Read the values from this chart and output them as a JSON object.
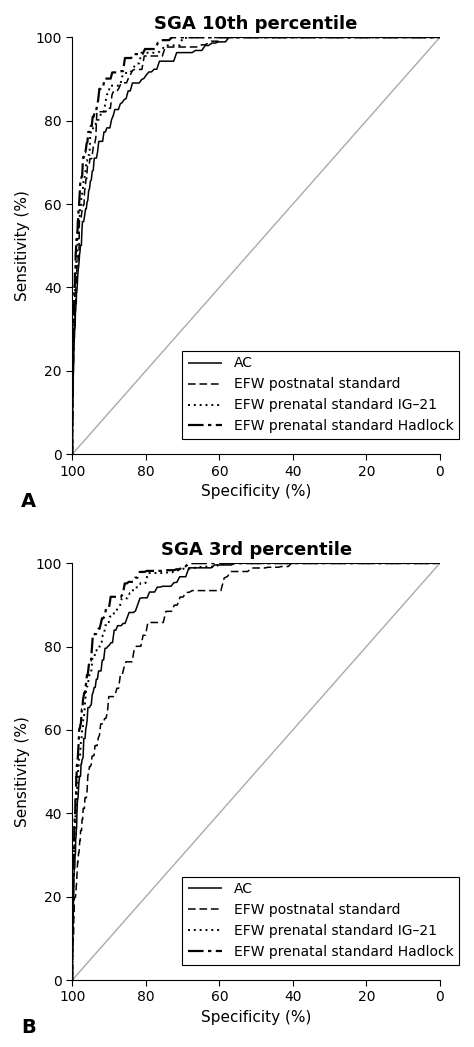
{
  "panel_A_title": "SGA 10th percentile",
  "panel_B_title": "SGA 3rd percentile",
  "xlabel": "Specificity (%)",
  "ylabel": "Sensitivity (%)",
  "panel_label_A": "A",
  "panel_label_B": "B",
  "xticks": [
    100,
    80,
    60,
    40,
    20,
    0
  ],
  "yticks": [
    0,
    20,
    40,
    60,
    80,
    100
  ],
  "diagonal_color": "#aaaaaa",
  "background_color": "#ffffff",
  "title_fontsize": 13,
  "axis_fontsize": 11,
  "tick_fontsize": 10,
  "legend_fontsize": 10
}
